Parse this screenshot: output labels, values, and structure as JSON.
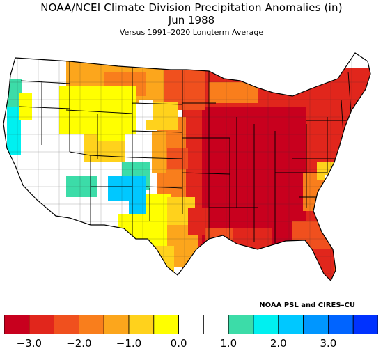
{
  "title": "NOAA/NCEI Climate Division Precipitation Anomalies (in)",
  "subtitle": "Jun 1988",
  "versus": "Versus 1991–2020 Longterm Average",
  "credit": "NOAA PSL and CIRES–CU",
  "units": "in",
  "colors": {
    "dark_red": "#c8001e",
    "red": "#e1261c",
    "orange_red": "#f0501e",
    "orange": "#f97e1c",
    "light_orange": "#fca61c",
    "yellow_orange": "#ffd21c",
    "yellow": "#ffff00",
    "white": "#ffffff",
    "aqua": "#3cdca8",
    "cyan": "#00f0f0",
    "sky": "#00c8ff",
    "blue": "#0096ff",
    "med_blue": "#0064ff",
    "deep_blue": "#0032ff"
  },
  "colorbar": {
    "bins": [
      "#c8001e",
      "#e1261c",
      "#f0501e",
      "#f97e1c",
      "#fca61c",
      "#ffd21c",
      "#ffff00",
      "#ffffff",
      "#ffffff",
      "#3cdca8",
      "#00f0f0",
      "#00c8ff",
      "#0096ff",
      "#0064ff",
      "#0032ff"
    ],
    "tick_labels": [
      "−3.0",
      "−2.0",
      "−1.0",
      "0.0",
      "1.0",
      "2.0",
      "3.0"
    ]
  }
}
